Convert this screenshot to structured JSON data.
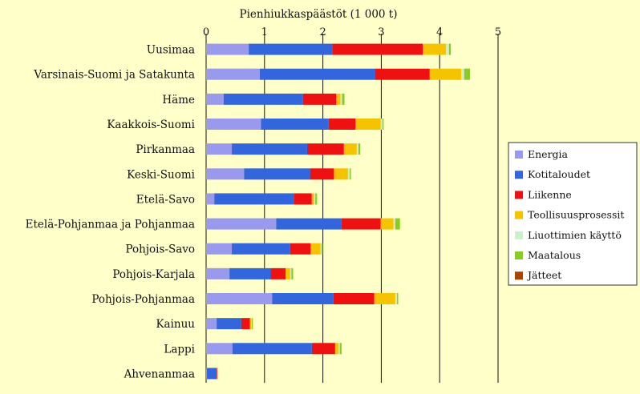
{
  "chart_data": {
    "type": "bar",
    "orientation": "horizontal",
    "stacked": true,
    "title": "Pienhiukkaspäästöt (1 000 t)",
    "xlim": [
      0,
      5
    ],
    "xticks": [
      "0",
      "1",
      "2",
      "3",
      "4",
      "5"
    ],
    "grid": "vertical",
    "legend_position": "right",
    "categories": [
      "Uusimaa",
      "Varsinais-Suomi ja Satakunta",
      "Häme",
      "Kaakkois-Suomi",
      "Pirkanmaa",
      "Keski-Suomi",
      "Etelä-Savo",
      "Etelä-Pohjanmaa ja Pohjanmaa",
      "Pohjois-Savo",
      "Pohjois-Karjala",
      "Pohjois-Pohjanmaa",
      "Kainuu",
      "Lappi",
      "Ahvenanmaa"
    ],
    "series": [
      {
        "name": "Energia",
        "color": "#9999ee",
        "values": [
          0.73,
          0.92,
          0.3,
          0.94,
          0.44,
          0.65,
          0.14,
          1.2,
          0.44,
          0.4,
          1.13,
          0.18,
          0.45,
          0.01
        ]
      },
      {
        "name": "Kotitaloudet",
        "color": "#3366dd",
        "values": [
          1.43,
          1.97,
          1.36,
          1.16,
          1.29,
          1.13,
          1.36,
          1.12,
          1.0,
          0.7,
          1.05,
          0.42,
          1.36,
          0.17
        ]
      },
      {
        "name": "Liikenne",
        "color": "#ee1111",
        "values": [
          1.55,
          0.94,
          0.57,
          0.46,
          0.63,
          0.41,
          0.31,
          0.67,
          0.35,
          0.26,
          0.7,
          0.15,
          0.4,
          0.01
        ]
      },
      {
        "name": "Teollisuusprosessit",
        "color": "#f5c400",
        "values": [
          0.4,
          0.54,
          0.07,
          0.43,
          0.22,
          0.24,
          0.04,
          0.22,
          0.17,
          0.08,
          0.36,
          0.02,
          0.06,
          0.01
        ]
      },
      {
        "name": "Liuottimien käyttö",
        "color": "#ccf0cc",
        "values": [
          0.05,
          0.05,
          0.03,
          0.03,
          0.03,
          0.03,
          0.02,
          0.03,
          0.02,
          0.02,
          0.03,
          0.01,
          0.02,
          0.0
        ]
      },
      {
        "name": "Maatalous",
        "color": "#88cc22",
        "values": [
          0.03,
          0.1,
          0.04,
          0.02,
          0.03,
          0.02,
          0.03,
          0.08,
          0.02,
          0.03,
          0.02,
          0.02,
          0.03,
          0.0
        ]
      },
      {
        "name": "Jätteet",
        "color": "#aa4400",
        "values": [
          0.0,
          0.0,
          0.0,
          0.0,
          0.0,
          0.0,
          0.0,
          0.0,
          0.0,
          0.0,
          0.0,
          0.0,
          0.0,
          0.0
        ]
      }
    ]
  }
}
